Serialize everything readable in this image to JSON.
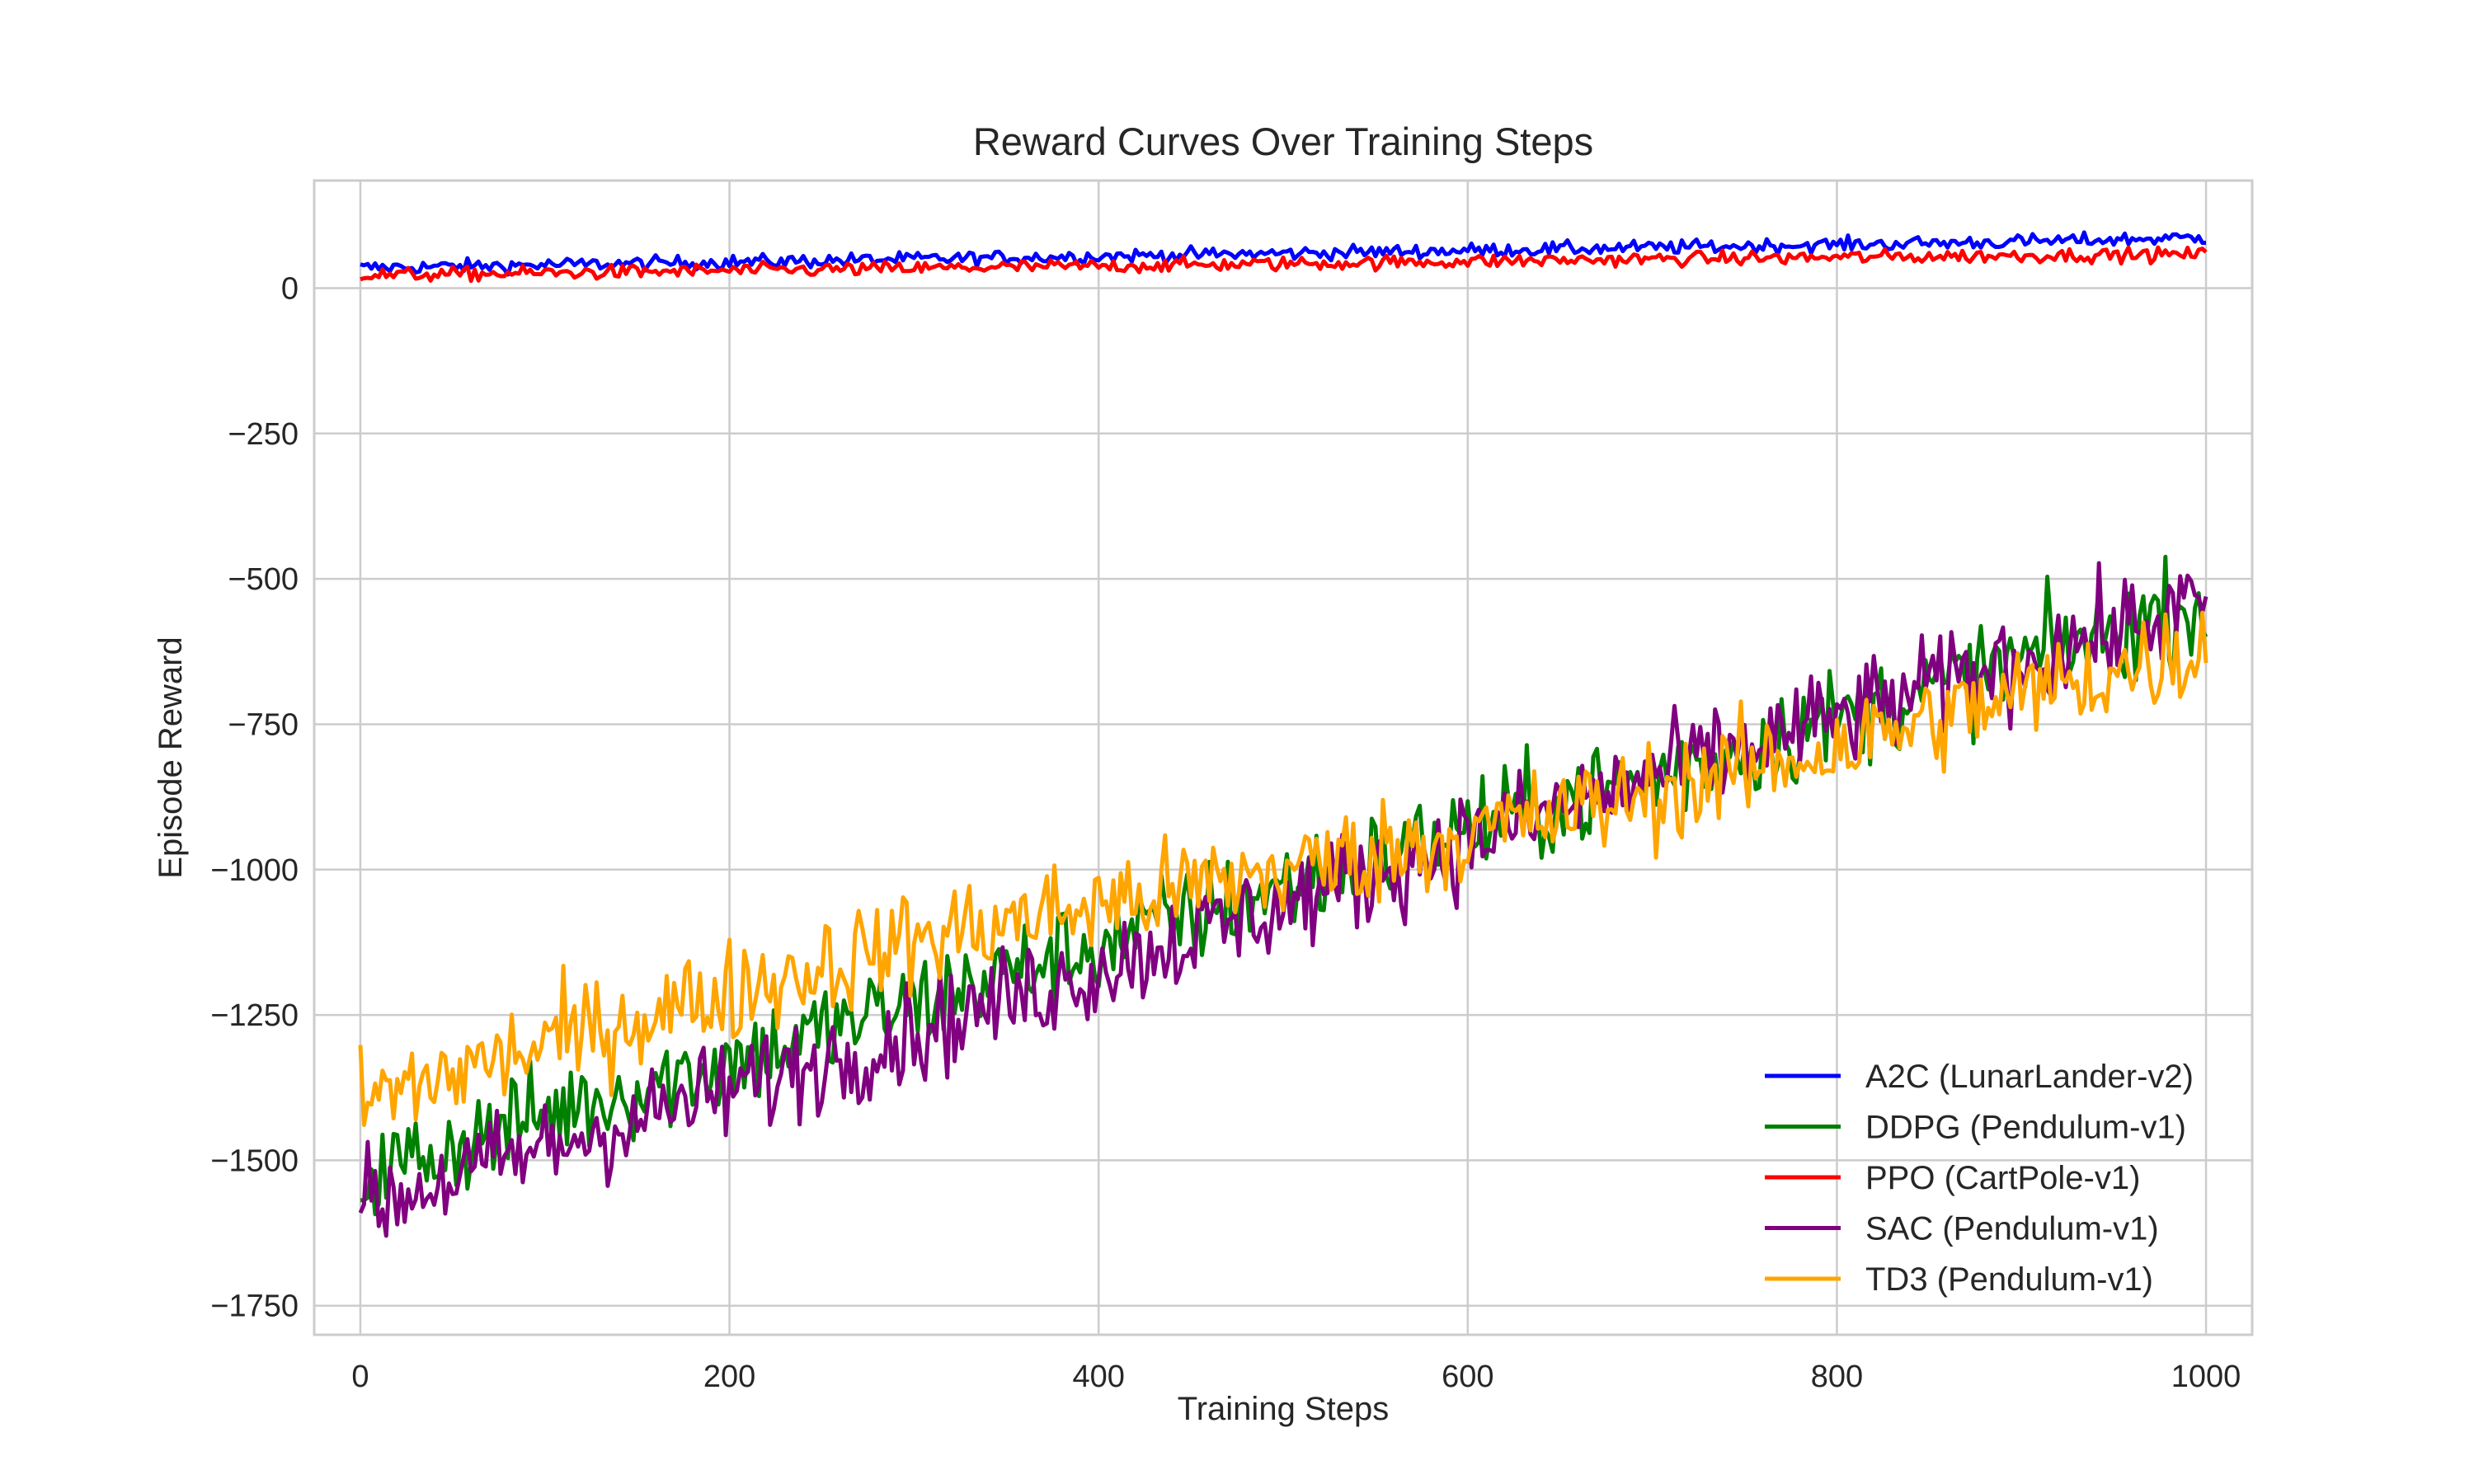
{
  "chart_data": {
    "type": "line",
    "title": "Reward Curves Over Training Steps",
    "xlabel": "Training Steps",
    "ylabel": "Episode Reward",
    "xlim": [
      -25,
      1025
    ],
    "ylim": [
      -1800,
      185
    ],
    "xticks": [
      0,
      200,
      400,
      600,
      800,
      1000
    ],
    "yticks": [
      0,
      -250,
      -500,
      -750,
      -1000,
      -1250,
      -1500,
      -1750
    ],
    "xtick_labels": [
      "0",
      "200",
      "400",
      "600",
      "800",
      "1000"
    ],
    "ytick_labels": [
      "0",
      "−250",
      "−500",
      "−750",
      "−1000",
      "−1250",
      "−1500",
      "−1750"
    ],
    "grid": true,
    "legend_position": "lower-right",
    "series": [
      {
        "name": "A2C (LunarLander-v2)",
        "color": "#0000ff",
        "x": [
          0,
          100,
          200,
          300,
          400,
          500,
          600,
          700,
          800,
          900,
          1000
        ],
        "values": [
          35,
          40,
          45,
          50,
          55,
          60,
          65,
          70,
          75,
          80,
          87
        ],
        "noise": 6
      },
      {
        "name": "DDPG (Pendulum-v1)",
        "color": "#008000",
        "x": [
          0,
          100,
          200,
          300,
          400,
          500,
          600,
          700,
          800,
          900,
          1000
        ],
        "values": [
          -1530,
          -1420,
          -1330,
          -1230,
          -1130,
          -1030,
          -930,
          -840,
          -740,
          -640,
          -540
        ],
        "noise": 45
      },
      {
        "name": "PPO (CartPole-v1)",
        "color": "#ff0000",
        "x": [
          0,
          100,
          200,
          300,
          400,
          500,
          600,
          700,
          800,
          900,
          1000
        ],
        "values": [
          22,
          26,
          30,
          34,
          38,
          42,
          46,
          50,
          53,
          56,
          58
        ],
        "noise": 6
      },
      {
        "name": "SAC (Pendulum-v1)",
        "color": "#800080",
        "x": [
          0,
          100,
          200,
          300,
          400,
          500,
          600,
          700,
          800,
          900,
          1000
        ],
        "values": [
          -1580,
          -1480,
          -1380,
          -1280,
          -1170,
          -1060,
          -950,
          -840,
          -740,
          -640,
          -540
        ],
        "noise": 45
      },
      {
        "name": "TD3 (Pendulum-v1)",
        "color": "#ffa500",
        "x": [
          0,
          100,
          200,
          300,
          400,
          500,
          600,
          700,
          800,
          900,
          1000
        ],
        "values": [
          -1400,
          -1300,
          -1210,
          -1120,
          -1060,
          -1000,
          -940,
          -870,
          -790,
          -700,
          -620
        ],
        "noise": 45
      }
    ]
  }
}
